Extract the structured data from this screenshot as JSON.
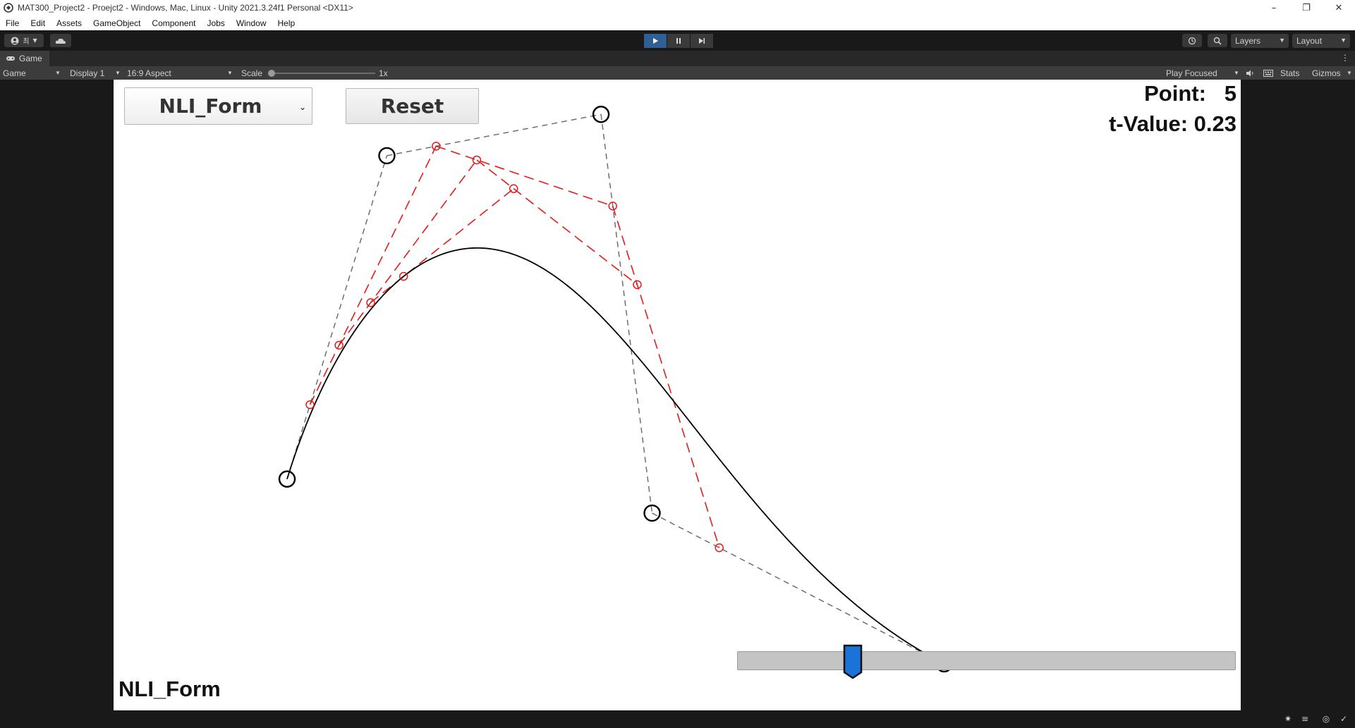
{
  "window": {
    "title": "MAT300_Project2 - Proejct2 - Windows, Mac, Linux - Unity 2021.3.24f1 Personal <DX11>",
    "minimize": "–",
    "maximize": "❐",
    "close": "✕"
  },
  "menu": [
    "File",
    "Edit",
    "Assets",
    "GameObject",
    "Component",
    "Jobs",
    "Window",
    "Help"
  ],
  "toolbar": {
    "account_label": "최",
    "layers_label": "Layers",
    "layout_label": "Layout"
  },
  "tab": {
    "label": "Game"
  },
  "gamebar": {
    "view_label": "Game",
    "display_label": "Display 1",
    "aspect_label": "16:9 Aspect",
    "scale_label": "Scale",
    "scale_value": "1x",
    "play_focused_label": "Play Focused",
    "stats_label": "Stats",
    "gizmos_label": "Gizmos"
  },
  "game": {
    "mode_dropdown": "NLI_Form",
    "reset_label": "Reset",
    "point_text": "Point:   5",
    "tvalue_text": "t-Value: 0.23",
    "form_label": "NLI_Form",
    "t_value": 0.23,
    "control_points": [
      [
        -1.0,
        -0.55
      ],
      [
        -0.59,
        0.78
      ],
      [
        0.29,
        0.95
      ],
      [
        0.5,
        -0.69
      ],
      [
        1.7,
        -1.31
      ]
    ],
    "colors": {
      "curve": "#000000",
      "control_polygon": "#666666",
      "intermediate": "#e21b1b",
      "handle": "#1a73d9"
    }
  }
}
